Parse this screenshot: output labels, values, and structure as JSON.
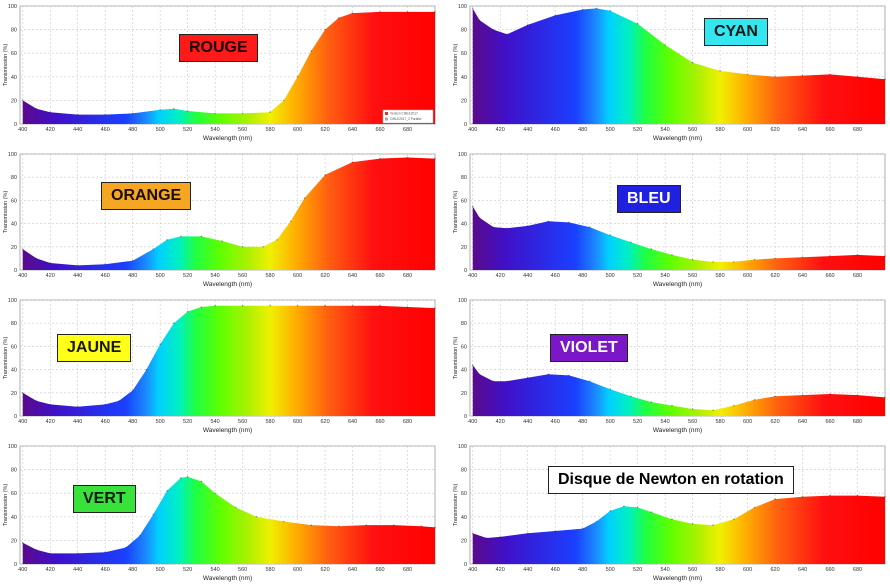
{
  "chart_data": [
    {
      "type": "area",
      "title": "ROUGE",
      "label_bg": "#ff1a1a",
      "label_fg": "#1a0000",
      "xlabel": "Wavelength (nm)",
      "ylabel": "Transmission (%)",
      "xlim": [
        398,
        700
      ],
      "ylim": [
        0,
        100
      ],
      "x_ticks": [
        400,
        420,
        440,
        460,
        480,
        500,
        520,
        540,
        560,
        580,
        600,
        620,
        640,
        660,
        680
      ],
      "y_ticks": [
        0,
        20,
        40,
        60,
        80,
        100
      ],
      "grid": true,
      "legend": [
        "Version CIBLE2017",
        "CIBLE2017_2 Parallel"
      ],
      "x": [
        400,
        410,
        420,
        440,
        460,
        480,
        500,
        510,
        520,
        540,
        560,
        580,
        590,
        600,
        610,
        620,
        630,
        640,
        660,
        680,
        700
      ],
      "values": [
        20,
        13,
        10,
        8,
        8,
        9,
        12,
        13,
        11,
        9,
        9,
        10,
        20,
        40,
        62,
        80,
        90,
        94,
        95,
        95,
        95
      ]
    },
    {
      "type": "area",
      "title": "CYAN",
      "label_bg": "#33e6f0",
      "label_fg": "#001a1a",
      "xlabel": "Wavelength (nm)",
      "ylabel": "Transmission (%)",
      "xlim": [
        398,
        700
      ],
      "ylim": [
        0,
        100
      ],
      "x_ticks": [
        400,
        420,
        440,
        460,
        480,
        500,
        520,
        540,
        560,
        580,
        600,
        620,
        640,
        660,
        680
      ],
      "y_ticks": [
        0,
        20,
        40,
        60,
        80,
        100
      ],
      "grid": true,
      "x": [
        400,
        405,
        415,
        425,
        440,
        460,
        480,
        490,
        500,
        520,
        540,
        560,
        580,
        600,
        620,
        640,
        660,
        680,
        700
      ],
      "values": [
        98,
        88,
        80,
        76,
        84,
        92,
        97,
        98,
        96,
        85,
        67,
        52,
        45,
        42,
        40,
        41,
        42,
        40,
        38
      ]
    },
    {
      "type": "area",
      "title": "ORANGE",
      "label_bg": "#f5a623",
      "label_fg": "#1a0e00",
      "xlabel": "Wavelength (nm)",
      "ylabel": "Transmission (%)",
      "xlim": [
        398,
        700
      ],
      "ylim": [
        0,
        100
      ],
      "x_ticks": [
        400,
        420,
        440,
        460,
        480,
        500,
        520,
        540,
        560,
        580,
        600,
        620,
        640,
        660,
        680
      ],
      "y_ticks": [
        0,
        20,
        40,
        60,
        80,
        100
      ],
      "grid": true,
      "x": [
        400,
        410,
        420,
        440,
        460,
        480,
        495,
        505,
        515,
        530,
        545,
        560,
        575,
        585,
        595,
        605,
        620,
        640,
        660,
        680,
        700
      ],
      "values": [
        18,
        10,
        6,
        4,
        5,
        8,
        18,
        26,
        29,
        29,
        25,
        20,
        20,
        26,
        42,
        62,
        82,
        93,
        96,
        97,
        96
      ]
    },
    {
      "type": "area",
      "title": "BLEU",
      "label_bg": "#2020e0",
      "label_fg": "#ffffff",
      "xlabel": "Wavelength (nm)",
      "ylabel": "Transmission (%)",
      "xlim": [
        398,
        700
      ],
      "ylim": [
        0,
        100
      ],
      "x_ticks": [
        400,
        420,
        440,
        460,
        480,
        500,
        520,
        540,
        560,
        580,
        600,
        620,
        640,
        660,
        680
      ],
      "y_ticks": [
        0,
        20,
        40,
        60,
        80,
        100
      ],
      "grid": true,
      "x": [
        400,
        405,
        415,
        425,
        440,
        455,
        470,
        485,
        500,
        515,
        530,
        545,
        560,
        575,
        590,
        605,
        620,
        640,
        660,
        680,
        700
      ],
      "values": [
        55,
        45,
        37,
        36,
        38,
        42,
        41,
        37,
        30,
        24,
        18,
        13,
        9,
        7,
        7,
        9,
        10,
        11,
        12,
        13,
        12
      ]
    },
    {
      "type": "area",
      "title": "JAUNE",
      "label_bg": "#ffff1a",
      "label_fg": "#1a1a00",
      "xlabel": "Wavelength (nm)",
      "ylabel": "Transmission (%)",
      "xlim": [
        398,
        700
      ],
      "ylim": [
        0,
        100
      ],
      "x_ticks": [
        400,
        420,
        440,
        460,
        480,
        500,
        520,
        540,
        560,
        580,
        600,
        620,
        640,
        660,
        680
      ],
      "y_ticks": [
        0,
        20,
        40,
        60,
        80,
        100
      ],
      "grid": true,
      "x": [
        400,
        410,
        420,
        440,
        460,
        470,
        480,
        490,
        500,
        510,
        520,
        530,
        540,
        560,
        580,
        600,
        620,
        640,
        660,
        680,
        700
      ],
      "values": [
        20,
        13,
        10,
        8,
        10,
        13,
        22,
        40,
        62,
        80,
        90,
        94,
        95,
        95,
        95,
        95,
        95,
        95,
        95,
        94,
        93
      ]
    },
    {
      "type": "area",
      "title": "VIOLET",
      "label_bg": "#7a18c8",
      "label_fg": "#ffffff",
      "xlabel": "Wavelength (nm)",
      "ylabel": "Transmission (%)",
      "xlim": [
        398,
        700
      ],
      "ylim": [
        0,
        100
      ],
      "x_ticks": [
        400,
        420,
        440,
        460,
        480,
        500,
        520,
        540,
        560,
        580,
        600,
        620,
        640,
        660,
        680
      ],
      "y_ticks": [
        0,
        20,
        40,
        60,
        80,
        100
      ],
      "grid": true,
      "x": [
        400,
        405,
        415,
        425,
        440,
        455,
        470,
        485,
        500,
        515,
        530,
        545,
        560,
        575,
        590,
        605,
        620,
        640,
        660,
        680,
        700
      ],
      "values": [
        44,
        36,
        30,
        30,
        33,
        36,
        35,
        30,
        23,
        17,
        12,
        9,
        6,
        5,
        9,
        14,
        17,
        18,
        19,
        18,
        16
      ]
    },
    {
      "type": "area",
      "title": "VERT",
      "label_bg": "#39e23a",
      "label_fg": "#001a00",
      "xlabel": "Wavelength (nm)",
      "ylabel": "Transmission (%)",
      "xlim": [
        398,
        700
      ],
      "ylim": [
        0,
        100
      ],
      "x_ticks": [
        400,
        420,
        440,
        460,
        480,
        500,
        520,
        540,
        560,
        580,
        600,
        620,
        640,
        660,
        680
      ],
      "y_ticks": [
        0,
        20,
        40,
        60,
        80,
        100
      ],
      "grid": true,
      "x": [
        400,
        410,
        420,
        440,
        460,
        475,
        485,
        495,
        505,
        515,
        520,
        530,
        540,
        555,
        570,
        590,
        610,
        630,
        650,
        670,
        690,
        700
      ],
      "values": [
        18,
        12,
        9,
        9,
        10,
        14,
        24,
        42,
        62,
        73,
        74,
        70,
        60,
        48,
        40,
        36,
        33,
        32,
        33,
        33,
        32,
        31
      ]
    },
    {
      "type": "area",
      "title": "Disque de Newton en rotation",
      "label_bg": "#ffffff",
      "label_fg": "#000000",
      "xlabel": "Wavelength (nm)",
      "ylabel": "Transmission (%)",
      "xlim": [
        398,
        700
      ],
      "ylim": [
        0,
        100
      ],
      "x_ticks": [
        400,
        420,
        440,
        460,
        480,
        500,
        520,
        540,
        560,
        580,
        600,
        620,
        640,
        660,
        680
      ],
      "y_ticks": [
        0,
        20,
        40,
        60,
        80,
        100
      ],
      "grid": true,
      "x": [
        400,
        410,
        420,
        440,
        460,
        480,
        490,
        500,
        510,
        520,
        530,
        545,
        560,
        575,
        590,
        605,
        620,
        640,
        660,
        680,
        700
      ],
      "values": [
        26,
        22,
        23,
        26,
        28,
        30,
        36,
        45,
        49,
        48,
        44,
        38,
        34,
        33,
        38,
        48,
        55,
        57,
        58,
        58,
        57
      ]
    }
  ]
}
